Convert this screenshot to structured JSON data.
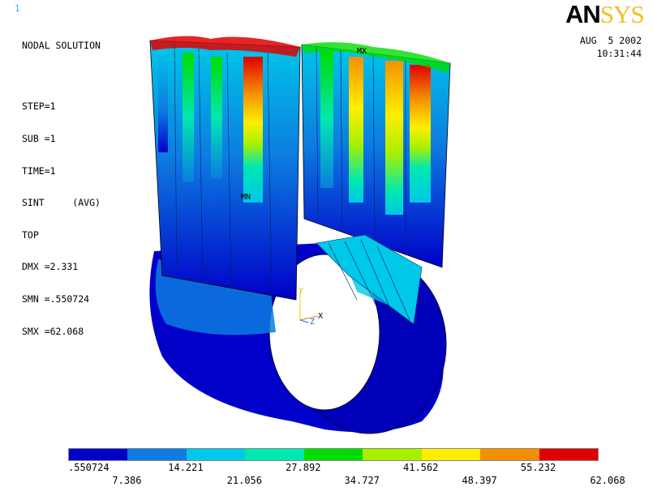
{
  "window_number": "1",
  "solution": {
    "title": "NODAL SOLUTION",
    "step": "STEP=1",
    "sub": "SUB =1",
    "time": "TIME=1",
    "sint": "SINT     (AVG)",
    "top": "TOP",
    "dmx": "DMX =2.331",
    "smn": "SMN =.550724",
    "smx": "SMX =62.068"
  },
  "logo": {
    "part1": "AN",
    "part2": "SYS"
  },
  "date": "AUG  5 2002",
  "time": "10:31:44",
  "markers": {
    "mn": "MN",
    "mx": "MX"
  },
  "axes": {
    "y": "Y",
    "z": "Z",
    "x": "X"
  },
  "legend": {
    "colors": [
      "#0000c8",
      "#0c7ce0",
      "#00c8e8",
      "#00e8b0",
      "#00dc00",
      "#a8f000",
      "#ffee00",
      "#f49000",
      "#e00000"
    ],
    "values_top": [
      ".550724",
      "14.221",
      "27.892",
      "41.562",
      "55.232"
    ],
    "values_bottom": [
      "7.386",
      "21.056",
      "34.727",
      "48.397",
      "62.068"
    ]
  }
}
